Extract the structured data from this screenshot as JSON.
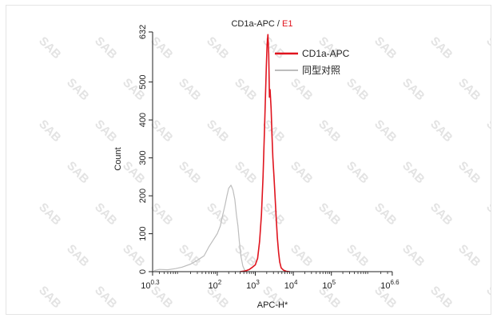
{
  "chart_data": {
    "type": "line",
    "title": "CD1a-APC",
    "title_separator": " / ",
    "title_sample": "E1",
    "xlabel": "APC-H*",
    "ylabel": "Count",
    "x_scale": "log",
    "xlim": [
      2.0,
      4000000
    ],
    "ylim": [
      0,
      632
    ],
    "x_ticks": [
      {
        "base": "10",
        "exp": "0.3"
      },
      {
        "base": "10",
        "exp": "2"
      },
      {
        "base": "10",
        "exp": "3"
      },
      {
        "base": "10",
        "exp": "4"
      },
      {
        "base": "10",
        "exp": "5"
      },
      {
        "base": "10",
        "exp": "6.6"
      }
    ],
    "y_ticks": [
      "0",
      "100",
      "200",
      "300",
      "400",
      "500",
      "632"
    ],
    "legend_position": "top-right",
    "grid": false,
    "watermark": "SAB",
    "series": [
      {
        "name": "CD1a-APC",
        "color": "#e0141e",
        "x": [
          400,
          550,
          700,
          850,
          1000,
          1150,
          1300,
          1450,
          1600,
          1750,
          1850,
          1950,
          2050,
          2150,
          2250,
          2350,
          2450,
          2600,
          2750,
          2900,
          3100,
          3300,
          3550,
          3800,
          4100,
          4400,
          4800,
          5500,
          6500,
          8000
        ],
        "y": [
          0,
          2,
          6,
          12,
          18,
          35,
          80,
          150,
          250,
          380,
          460,
          540,
          600,
          625,
          575,
          460,
          480,
          430,
          360,
          300,
          250,
          200,
          140,
          90,
          50,
          25,
          10,
          4,
          1,
          0
        ]
      },
      {
        "name": "同型对照",
        "color": "#bdbdbd",
        "x": [
          2.2,
          3,
          5,
          8,
          12,
          20,
          30,
          45,
          60,
          80,
          100,
          120,
          140,
          160,
          180,
          200,
          230,
          260,
          290,
          320,
          350,
          380,
          420,
          470,
          520,
          600
        ],
        "y": [
          3,
          6,
          5,
          8,
          12,
          20,
          30,
          42,
          65,
          85,
          100,
          120,
          150,
          175,
          200,
          220,
          228,
          215,
          190,
          150,
          120,
          80,
          40,
          15,
          5,
          0
        ]
      }
    ]
  }
}
